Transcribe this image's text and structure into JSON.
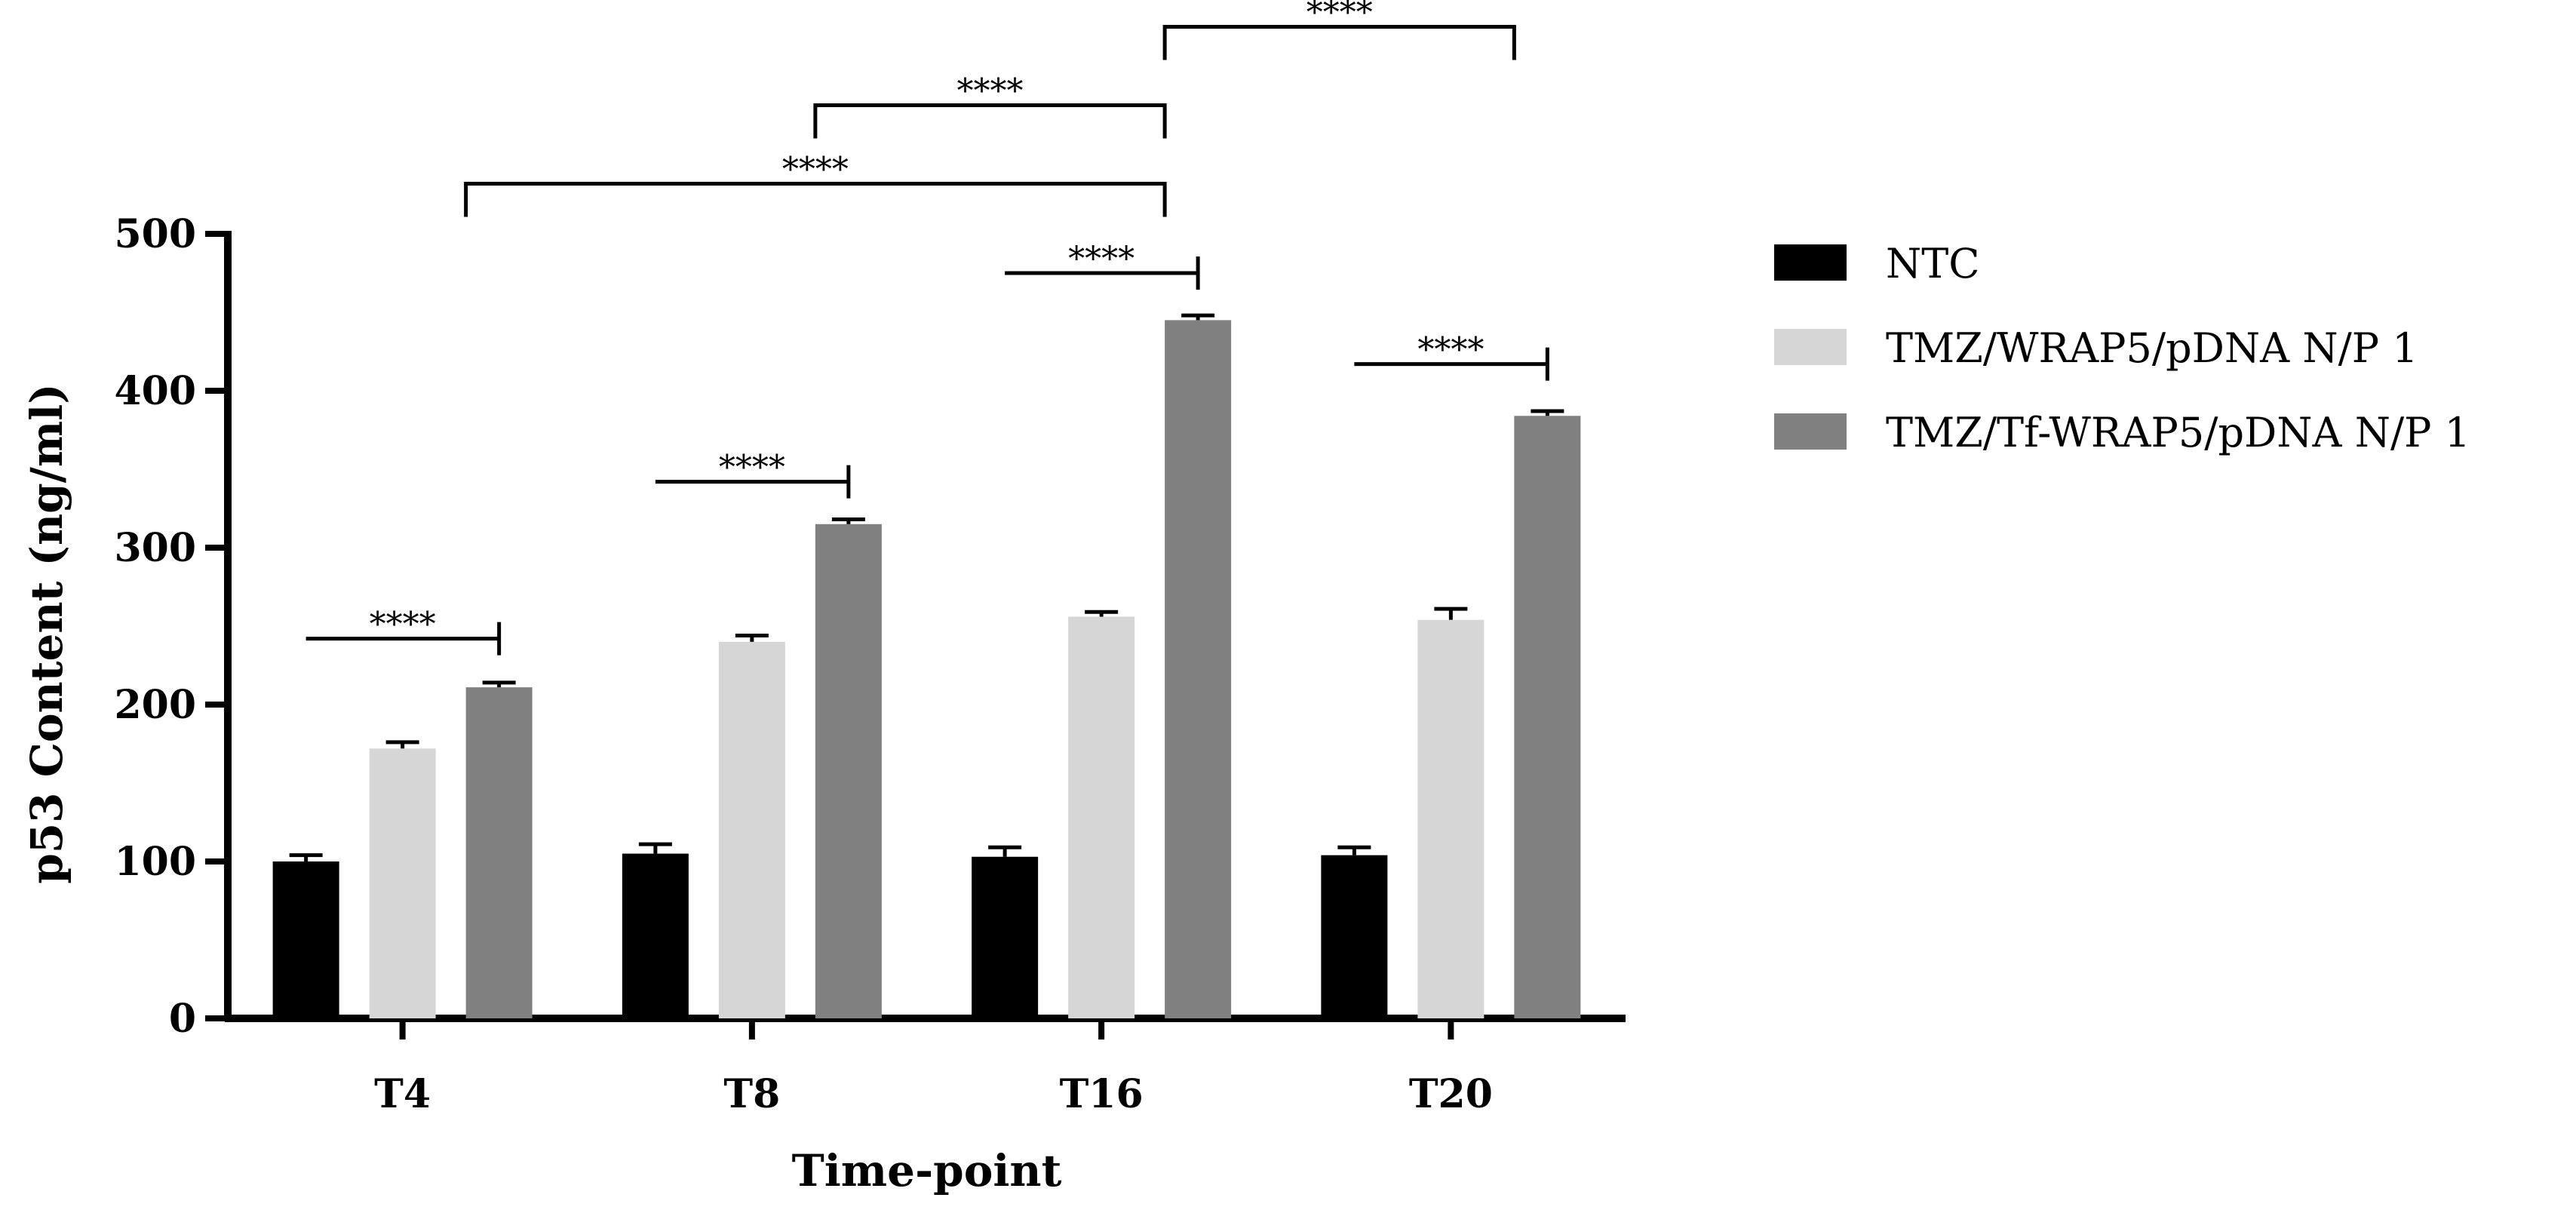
{
  "chart_data": {
    "type": "bar",
    "title": "",
    "xlabel": "Time-point",
    "ylabel": "p53 Content (ng/ml)",
    "ylim": [
      0,
      500
    ],
    "yticks": [
      0,
      100,
      200,
      300,
      400,
      500
    ],
    "ytick_labels": [
      "0",
      "100",
      "200",
      "300",
      "400",
      "500"
    ],
    "categories": [
      "T4",
      "T8",
      "T16",
      "T20"
    ],
    "series": [
      {
        "name": "NTC",
        "color": "#000000",
        "values": [
          100,
          105,
          103,
          104
        ],
        "errors": [
          4,
          6,
          6,
          5
        ]
      },
      {
        "name": "TMZ/WRAP5/pDNA N/P 1",
        "color": "#d6d6d6",
        "values": [
          172,
          240,
          256,
          254
        ],
        "errors": [
          4,
          4,
          3,
          7
        ]
      },
      {
        "name": "TMZ/Tf-WRAP5/pDNA N/P 1",
        "color": "#808080",
        "values": [
          211,
          315,
          445,
          384
        ],
        "errors": [
          3,
          3,
          3,
          3
        ]
      }
    ],
    "legend_position": "right",
    "significance": [
      {
        "label": "****",
        "kind": "within",
        "category": 0,
        "from_series": 0,
        "to_series": 2,
        "level": 242
      },
      {
        "label": "****",
        "kind": "within",
        "category": 1,
        "from_series": 0,
        "to_series": 2,
        "level": 342
      },
      {
        "label": "****",
        "kind": "within",
        "category": 2,
        "from_series": 0,
        "to_series": 2,
        "level": 475
      },
      {
        "label": "****",
        "kind": "within",
        "category": 3,
        "from_series": 0,
        "to_series": 2,
        "level": 417
      },
      {
        "label": "****",
        "kind": "between",
        "from_category": 0,
        "to_category": 2,
        "series": 2,
        "level": 532
      },
      {
        "label": "****",
        "kind": "between",
        "from_category": 1,
        "to_category": 2,
        "series": 2,
        "level": 582
      },
      {
        "label": "****",
        "kind": "between",
        "from_category": 2,
        "to_category": 3,
        "series": 2,
        "level": 632
      }
    ]
  }
}
